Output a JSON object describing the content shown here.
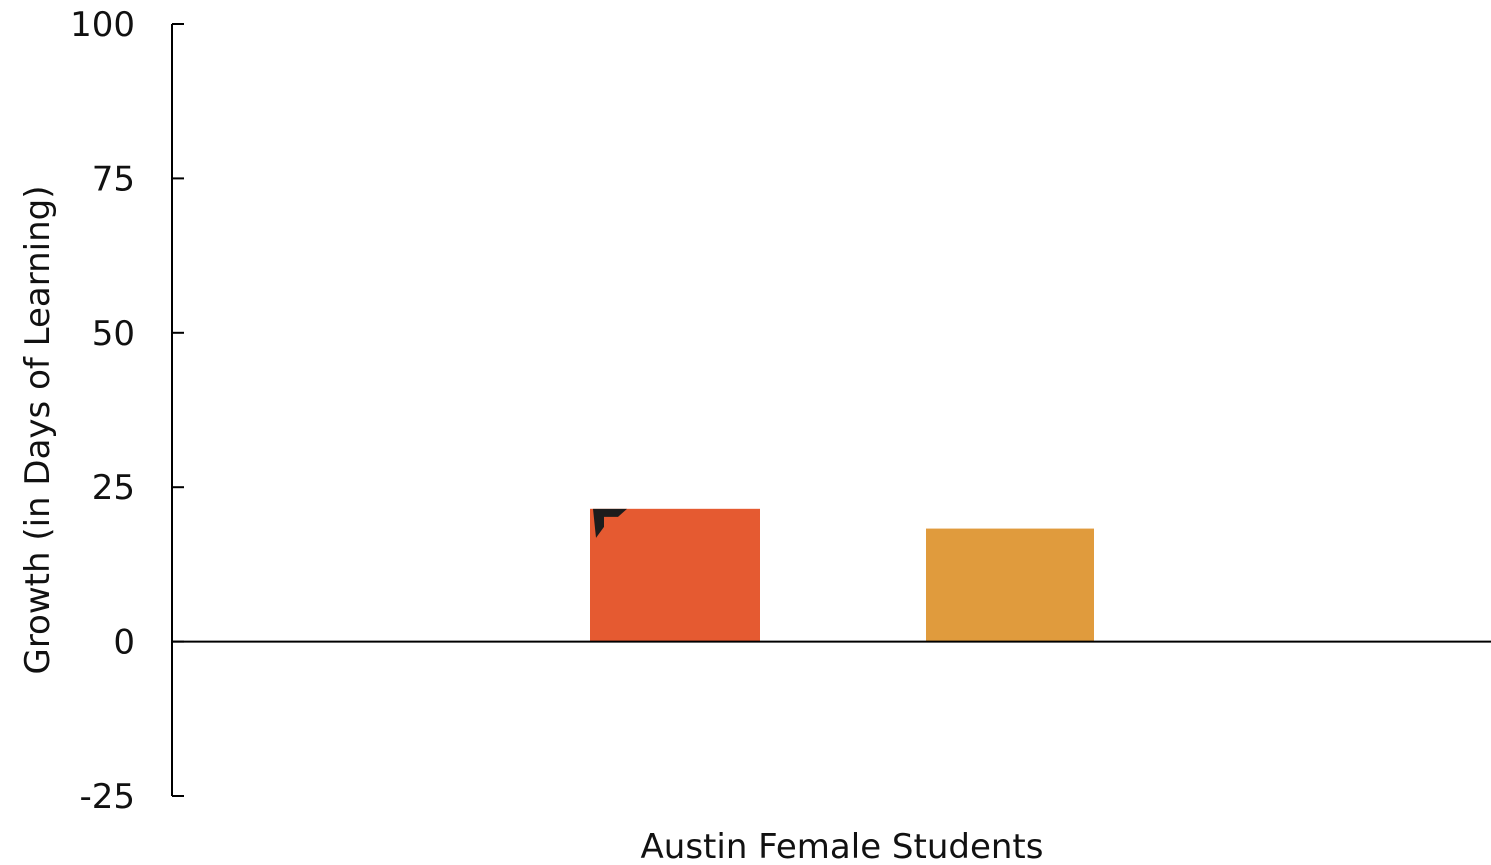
{
  "chart_data": {
    "type": "bar",
    "title": "",
    "xlabel": "Austin Female Students",
    "ylabel": "Growth (in Days of Learning)",
    "ylim": [
      -25,
      100
    ],
    "yticks": [
      -25,
      0,
      25,
      50,
      75,
      100
    ],
    "ytick_labels": [
      "-25",
      "0",
      "25",
      "50",
      "75",
      "100"
    ],
    "grid": false,
    "legend": "none",
    "bars": [
      {
        "value": 21.5,
        "color": "#e55a31"
      },
      {
        "value": 18.3,
        "color": "#e09b3d"
      }
    ],
    "annotations": [
      {
        "type": "marker-icon",
        "icon": "black-flag-corner-icon",
        "on_bar": 0
      }
    ]
  }
}
